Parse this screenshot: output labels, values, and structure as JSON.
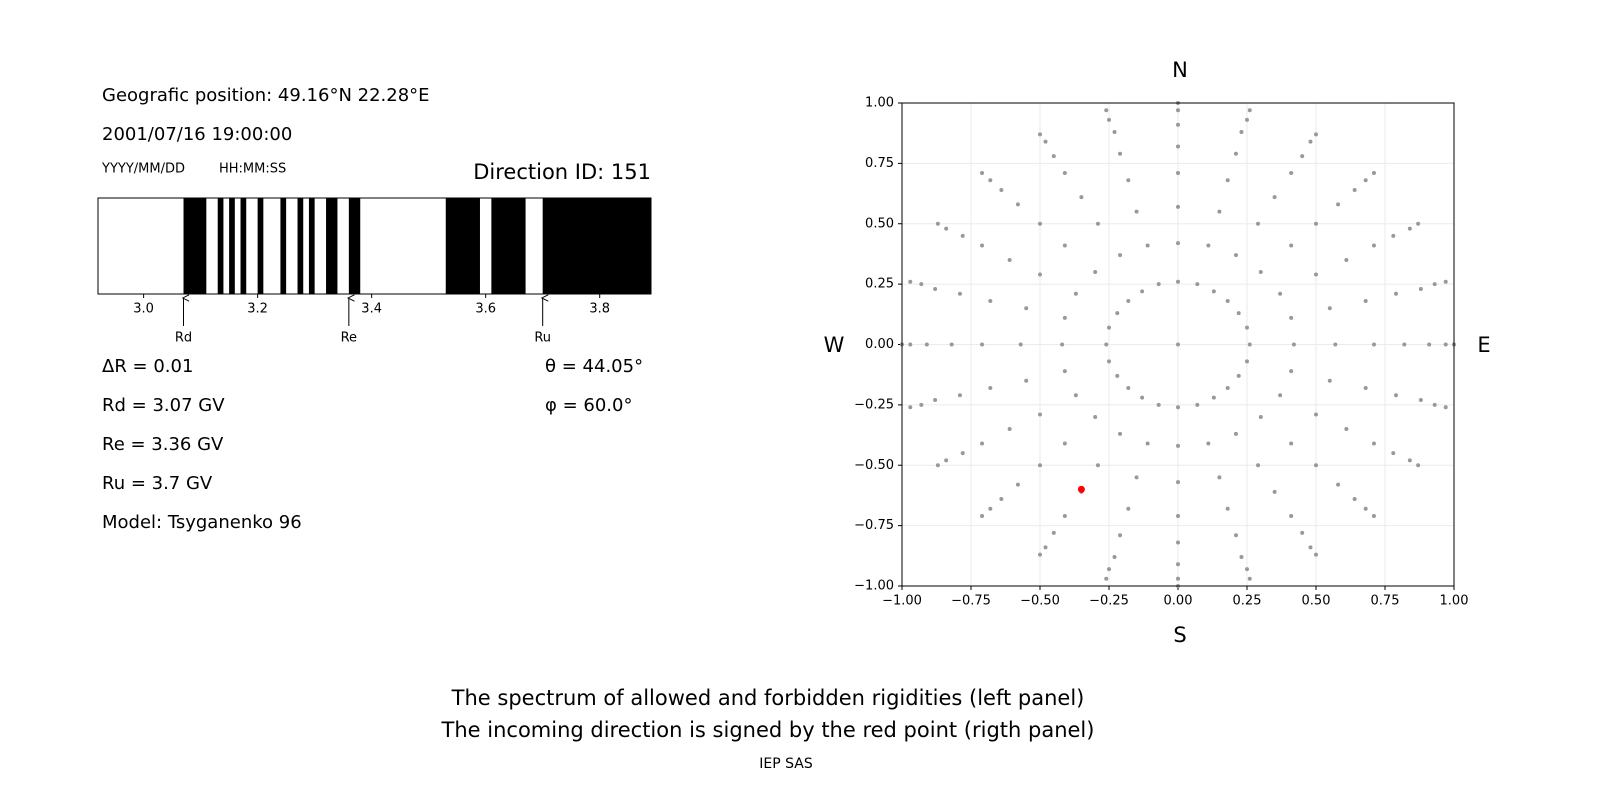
{
  "chart_data": [
    {
      "type": "spectrum",
      "position": "Geografic position: 49.16°N 22.28°E",
      "datetime": "2001/07/16 19:00:00",
      "date_format": "YYYY/MM/DD",
      "time_format": "HH:MM:SS",
      "title": "Direction ID: 151",
      "xlim": [
        2.92,
        3.89
      ],
      "xticks": [
        {
          "value": 3,
          "label": "3.0"
        },
        3.2,
        3.4,
        3.6,
        3.8
      ],
      "color": "#000000",
      "forbidden": [
        [
          3.07,
          3.11
        ],
        [
          3.13,
          3.14
        ],
        [
          3.15,
          3.16
        ],
        [
          3.17,
          3.18
        ],
        [
          3.2,
          3.21
        ],
        [
          3.24,
          3.25
        ],
        [
          3.27,
          3.28
        ],
        [
          3.29,
          3.3
        ],
        [
          3.32,
          3.34
        ],
        [
          3.36,
          3.38
        ],
        [
          3.53,
          3.59
        ],
        [
          3.61,
          3.67
        ],
        [
          3.7,
          3.89
        ]
      ],
      "markers": [
        {
          "label": "Rd",
          "value": 3.07
        },
        {
          "label": "Re",
          "value": 3.36
        },
        {
          "label": "Ru",
          "value": 3.7
        }
      ],
      "info_left": [
        "ΔR = 0.01",
        "Rd = 3.07 GV",
        "Re = 3.36 GV",
        "Ru = 3.7 GV",
        "Model: Tsyganenko 96"
      ],
      "info_right": [
        "θ = 44.05°",
        "φ = 60.0°"
      ]
    },
    {
      "type": "scatter",
      "compass": {
        "north": "N",
        "south": "S",
        "east": "E",
        "west": "W"
      },
      "xlim": [
        -1,
        1
      ],
      "ylim": [
        -1,
        1
      ],
      "grid": true,
      "xticks": [
        {
          "value": -1,
          "label": "−1.00"
        },
        {
          "value": -0.75,
          "label": "−0.75"
        },
        {
          "value": -0.5,
          "label": "−0.50"
        },
        {
          "value": -0.25,
          "label": "−0.25"
        },
        {
          "value": 0,
          "label": "0.00"
        },
        0.25,
        {
          "value": 0.5,
          "label": "0.50"
        },
        0.75,
        {
          "value": 1,
          "label": "1.00"
        }
      ],
      "yticks": [
        {
          "value": -1,
          "label": "−1.00"
        },
        {
          "value": -0.75,
          "label": "−0.75"
        },
        {
          "value": -0.5,
          "label": "−0.50"
        },
        {
          "value": -0.25,
          "label": "−0.25"
        },
        {
          "value": 0,
          "label": "0.00"
        },
        0.25,
        {
          "value": 0.5,
          "label": "0.50"
        },
        0.75,
        {
          "value": 1,
          "label": "1.00"
        }
      ],
      "series": [
        {
          "color": "#999999",
          "x": [
            0,
            0,
            0,
            0,
            0,
            0,
            0,
            0,
            0,
            0.07,
            0.11,
            0.15,
            0.18,
            0.21,
            0.23,
            0.25,
            0.26,
            0.13,
            0.21,
            0.29,
            0.35,
            0.41,
            0.45,
            0.48,
            0.5,
            0.18,
            0.3,
            0.41,
            0.5,
            0.58,
            0.64,
            0.68,
            0.71,
            0.22,
            0.37,
            0.5,
            0.61,
            0.71,
            0.78,
            0.84,
            0.87,
            0.25,
            0.41,
            0.55,
            0.68,
            0.79,
            0.88,
            0.93,
            0.97,
            0.26,
            0.42,
            0.57,
            0.71,
            0.82,
            0.91,
            0.97,
            1,
            0.25,
            0.41,
            0.55,
            0.68,
            0.79,
            0.88,
            0.93,
            0.97,
            0.22,
            0.37,
            0.5,
            0.61,
            0.71,
            0.78,
            0.84,
            0.87,
            0.18,
            0.3,
            0.41,
            0.5,
            0.58,
            0.64,
            0.68,
            0.71,
            0.13,
            0.21,
            0.29,
            0.35,
            0.41,
            0.45,
            0.48,
            0.5,
            0.07,
            0.11,
            0.15,
            0.18,
            0.21,
            0.23,
            0.25,
            0.26,
            0,
            0,
            0,
            0,
            0,
            0,
            0,
            0,
            -0.07,
            -0.11,
            -0.15,
            -0.18,
            -0.21,
            -0.23,
            -0.25,
            -0.26,
            -0.13,
            -0.21,
            -0.29,
            -0.35,
            -0.41,
            -0.45,
            -0.48,
            -0.5,
            -0.18,
            -0.3,
            -0.41,
            -0.5,
            -0.58,
            -0.64,
            -0.68,
            -0.71,
            -0.22,
            -0.37,
            -0.5,
            -0.61,
            -0.71,
            -0.78,
            -0.84,
            -0.87,
            -0.25,
            -0.41,
            -0.55,
            -0.68,
            -0.79,
            -0.88,
            -0.93,
            -0.97,
            -0.26,
            -0.42,
            -0.57,
            -0.71,
            -0.82,
            -0.91,
            -0.97,
            -1,
            -0.25,
            -0.41,
            -0.55,
            -0.68,
            -0.79,
            -0.88,
            -0.93,
            -0.97,
            -0.22,
            -0.37,
            -0.5,
            -0.61,
            -0.71,
            -0.78,
            -0.84,
            -0.87,
            -0.18,
            -0.3,
            -0.41,
            -0.5,
            -0.58,
            -0.64,
            -0.68,
            -0.71,
            -0.13,
            -0.21,
            -0.29,
            -0.35,
            -0.41,
            -0.45,
            -0.48,
            -0.5,
            -0.07,
            -0.11,
            -0.15,
            -0.18,
            -0.21,
            -0.23,
            -0.25,
            -0.26
          ],
          "y": [
            0,
            0.26,
            0.42,
            0.57,
            0.71,
            0.82,
            0.91,
            0.97,
            1,
            0.25,
            0.41,
            0.55,
            0.68,
            0.79,
            0.88,
            0.93,
            0.97,
            0.22,
            0.37,
            0.5,
            0.61,
            0.71,
            0.78,
            0.84,
            0.87,
            0.18,
            0.3,
            0.41,
            0.5,
            0.58,
            0.64,
            0.68,
            0.71,
            0.13,
            0.21,
            0.29,
            0.35,
            0.41,
            0.45,
            0.48,
            0.5,
            0.07,
            0.11,
            0.15,
            0.18,
            0.21,
            0.23,
            0.25,
            0.26,
            0,
            0,
            0,
            0,
            0,
            0,
            0,
            0,
            -0.07,
            -0.11,
            -0.15,
            -0.18,
            -0.21,
            -0.23,
            -0.25,
            -0.26,
            -0.13,
            -0.21,
            -0.29,
            -0.35,
            -0.41,
            -0.45,
            -0.48,
            -0.5,
            -0.18,
            -0.3,
            -0.41,
            -0.5,
            -0.58,
            -0.64,
            -0.68,
            -0.71,
            -0.22,
            -0.37,
            -0.5,
            -0.61,
            -0.71,
            -0.78,
            -0.84,
            -0.87,
            -0.25,
            -0.41,
            -0.55,
            -0.68,
            -0.79,
            -0.88,
            -0.93,
            -0.97,
            -0.26,
            -0.42,
            -0.57,
            -0.71,
            -0.82,
            -0.91,
            -0.97,
            -1,
            -0.25,
            -0.41,
            -0.55,
            -0.68,
            -0.79,
            -0.88,
            -0.93,
            -0.97,
            -0.22,
            -0.37,
            -0.5,
            -0.61,
            -0.71,
            -0.78,
            -0.84,
            -0.87,
            -0.18,
            -0.3,
            -0.41,
            -0.5,
            -0.58,
            -0.64,
            -0.68,
            -0.71,
            -0.13,
            -0.21,
            -0.29,
            -0.35,
            -0.41,
            -0.45,
            -0.48,
            -0.5,
            -0.07,
            -0.11,
            -0.15,
            -0.18,
            -0.21,
            -0.23,
            -0.25,
            -0.26,
            0,
            0,
            0,
            0,
            0,
            0,
            0,
            0,
            0.07,
            0.11,
            0.15,
            0.18,
            0.21,
            0.23,
            0.25,
            0.26,
            0.13,
            0.21,
            0.29,
            0.35,
            0.41,
            0.45,
            0.48,
            0.5,
            0.18,
            0.3,
            0.41,
            0.5,
            0.58,
            0.64,
            0.68,
            0.71,
            0.22,
            0.37,
            0.5,
            0.61,
            0.71,
            0.78,
            0.84,
            0.87,
            0.25,
            0.41,
            0.55,
            0.68,
            0.79,
            0.88,
            0.93,
            0.97
          ]
        },
        {
          "color": "#ff0000",
          "x": [
            -0.35
          ],
          "y": [
            -0.6
          ]
        }
      ]
    }
  ],
  "caption": [
    "The spectrum of allowed and forbidden rigidities (left panel)",
    "The incoming direction is signed by the red point (rigth panel)"
  ],
  "footer": "IEP SAS"
}
